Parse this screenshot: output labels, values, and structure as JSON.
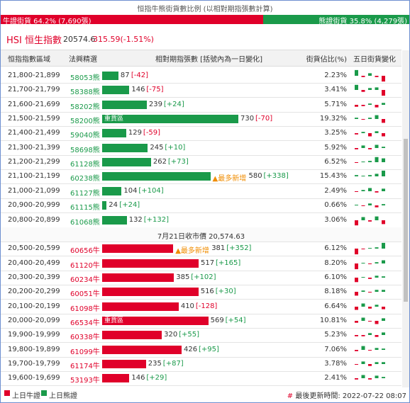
{
  "header": {
    "title": "恒指牛熊街貨數比例 (以相對期指張數計算)",
    "bull_label": "牛證街貨 64.2% (7,690張)",
    "bear_label": "熊證街貨 35.8% (4,279張)",
    "bull_share": 64.2,
    "bear_share": 35.8
  },
  "index": {
    "name": "HSI 恒生指數",
    "price": "20574.6",
    "change": "-315.59(-1.51%)"
  },
  "table": {
    "columns": [
      "恒指指數區域",
      "法興精選",
      "相對期指張數 [括號內為一日變化]",
      "街貨佔比(%)",
      "五日街貨變化"
    ],
    "bear_rows": [
      {
        "range": "21,800-21,899",
        "code": "58053熊",
        "count": 87,
        "change": "[-42]",
        "share": "2.23%",
        "five_day": [
          0.9,
          -0.2,
          0.4,
          -0.2,
          -0.9
        ]
      },
      {
        "range": "21,700-21,799",
        "code": "58388熊",
        "count": 146,
        "change": "[-75]",
        "share": "3.41%",
        "five_day": [
          0.8,
          -0.3,
          0.3,
          0.4,
          -0.9
        ]
      },
      {
        "range": "21,600-21,699",
        "code": "58202熊",
        "count": 239,
        "change": "[+24]",
        "share": "5.71%",
        "five_day": [
          -0.3,
          -0.2,
          0.2,
          -0.4,
          0.3
        ]
      },
      {
        "range": "21,500-21,599",
        "code": "58200熊",
        "count": 730,
        "change": "[-70]",
        "share": "19.32%",
        "tag": "重貨區",
        "five_day": [
          0.2,
          -0.1,
          0.2,
          0.6,
          -0.6
        ]
      },
      {
        "range": "21,400-21,499",
        "code": "59040熊",
        "count": 129,
        "change": "[-59]",
        "share": "3.25%",
        "five_day": [
          -0.2,
          0.2,
          -0.5,
          0.3,
          -0.5
        ]
      },
      {
        "range": "21,300-21,399",
        "code": "58698熊",
        "count": 245,
        "change": "[+10]",
        "share": "5.92%",
        "five_day": [
          -0.2,
          0.4,
          -0.2,
          0.5,
          0.2
        ]
      },
      {
        "range": "21,200-21,299",
        "code": "61128熊",
        "count": 262,
        "change": "[+73]",
        "share": "6.52%",
        "five_day": [
          -0.1,
          0.1,
          0.2,
          0.8,
          0.6
        ]
      },
      {
        "range": "21,100-21,199",
        "code": "60238熊",
        "count": 580,
        "change": "[+338]",
        "share": "15.43%",
        "tag": "▲最多新增",
        "five_day": [
          0.2,
          0.1,
          0.2,
          0.4,
          0.9
        ]
      },
      {
        "range": "21,000-21,099",
        "code": "61127熊",
        "count": 104,
        "change": "[+104]",
        "share": "2.49%",
        "five_day": [
          -0.1,
          0.2,
          0.5,
          -0.2,
          0.4
        ]
      },
      {
        "range": "20,900-20,999",
        "code": "61115熊",
        "count": 24,
        "change": "[+24]",
        "share": "0.66%",
        "five_day": [
          0.1,
          -0.1,
          0.3,
          -0.3,
          0.2
        ]
      },
      {
        "range": "20,800-20,899",
        "code": "61068熊",
        "count": 132,
        "change": "[+132]",
        "share": "3.06%",
        "five_day": [
          -0.8,
          0.5,
          -0.2,
          0.6,
          -0.6
        ]
      }
    ],
    "separator": "7月21日收市價 20,574.63",
    "bull_rows": [
      {
        "range": "20,500-20,599",
        "code": "60656牛",
        "count": 381,
        "change": "[+352]",
        "share": "6.12%",
        "tag": "▲最多新增",
        "five_day": [
          -0.9,
          -0.1,
          0.1,
          0.2,
          0.9
        ]
      },
      {
        "range": "20,400-20,499",
        "code": "61120牛",
        "count": 517,
        "change": "[+165]",
        "share": "8.20%",
        "five_day": [
          -0.9,
          0.1,
          -0.1,
          0.2,
          0.5
        ]
      },
      {
        "range": "20,300-20,399",
        "code": "60234牛",
        "count": 385,
        "change": "[+102]",
        "share": "6.10%",
        "five_day": [
          -0.7,
          0.1,
          -0.2,
          0.3,
          0.2
        ]
      },
      {
        "range": "20,200-20,299",
        "code": "60051牛",
        "count": 516,
        "change": "[+30]",
        "share": "8.18%",
        "five_day": [
          -0.6,
          0.2,
          -0.1,
          0.3,
          0.3
        ]
      },
      {
        "range": "20,100-20,199",
        "code": "61098牛",
        "count": 410,
        "change": "[-128]",
        "share": "6.64%",
        "five_day": [
          -0.5,
          0.5,
          -0.3,
          0.3,
          -0.4
        ]
      },
      {
        "range": "20,000-20,099",
        "code": "66534牛",
        "count": 569,
        "change": "[+54]",
        "share": "10.81%",
        "tag": "重貨區",
        "five_day": [
          -0.3,
          0.5,
          -0.1,
          -0.5,
          0.4
        ]
      },
      {
        "range": "19,900-19,999",
        "code": "60338牛",
        "count": 320,
        "change": "[+55]",
        "share": "5.23%",
        "five_day": [
          -0.2,
          -0.2,
          0.3,
          -0.3,
          0.4
        ]
      },
      {
        "range": "19,800-19,899",
        "code": "61099牛",
        "count": 426,
        "change": "[+95]",
        "share": "7.06%",
        "five_day": [
          -0.2,
          0.6,
          -0.1,
          0.3,
          0.2
        ]
      },
      {
        "range": "19,700-19,799",
        "code": "61174牛",
        "count": 235,
        "change": "[+87]",
        "share": "3.78%",
        "five_day": [
          -0.1,
          0.4,
          -0.3,
          0.3,
          0.3
        ]
      },
      {
        "range": "19,600-19,699",
        "code": "53193牛",
        "count": 146,
        "change": "[+29]",
        "share": "2.41%",
        "five_day": [
          -0.2,
          0.5,
          -0.2,
          0.4,
          0.2
        ]
      }
    ]
  },
  "footer": {
    "bull_legend": "上日牛證",
    "bear_legend": "上日熊證",
    "hash": "#",
    "updated": "最後更新時間: 2022-07-22 08:07"
  }
}
